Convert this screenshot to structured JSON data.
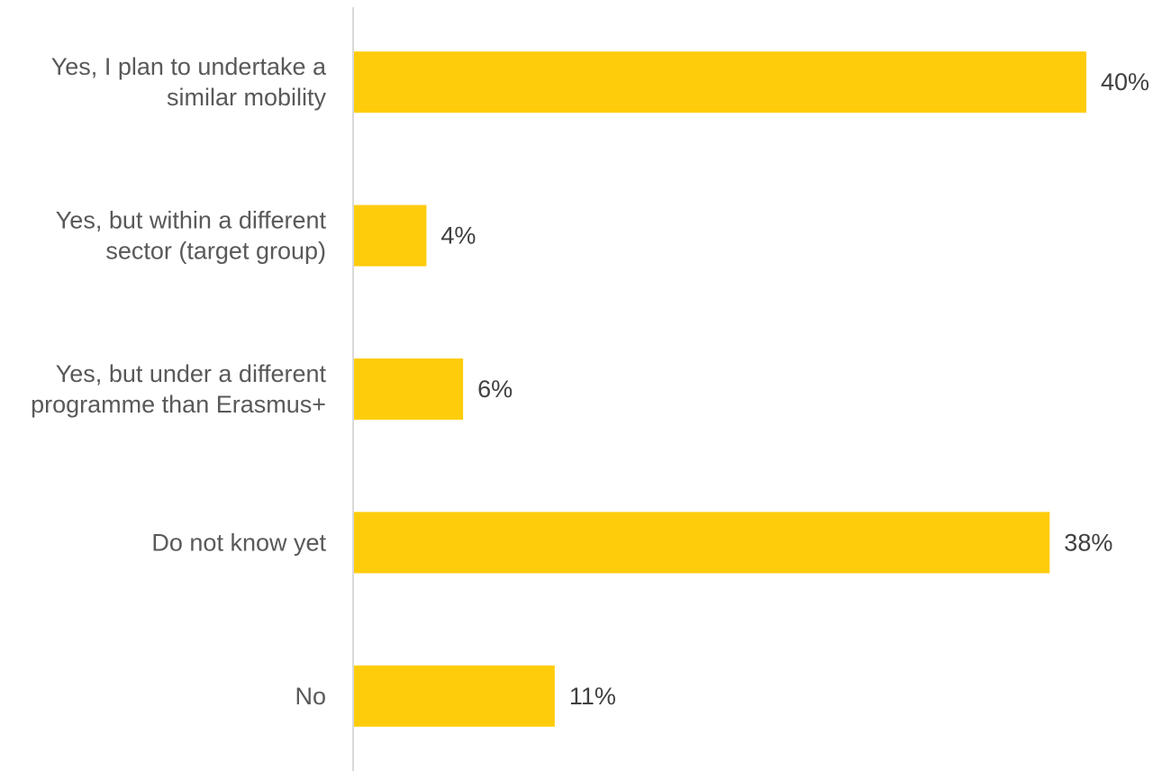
{
  "chart_data": {
    "type": "bar",
    "orientation": "horizontal",
    "categories": [
      [
        "Yes, I plan to undertake a",
        "similar mobility"
      ],
      [
        "Yes, but within a different",
        "sector (target group)"
      ],
      [
        "Yes, but under a different",
        "programme than Erasmus+"
      ],
      [
        "Do not know yet"
      ],
      [
        "No"
      ]
    ],
    "values": [
      40,
      4,
      6,
      38,
      11
    ],
    "data_labels": [
      "40%",
      "4%",
      "6%",
      "38%",
      "11%"
    ],
    "xlim": [
      0,
      40
    ],
    "bar_color": "#FFCC0B",
    "axis_color": "#D9D9D9",
    "grid": false,
    "legend": "none"
  }
}
